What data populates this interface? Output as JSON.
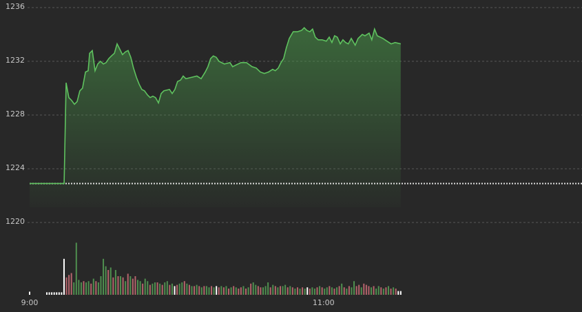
{
  "chart_data": [
    {
      "type": "area",
      "xlim": [
        0,
        225.5
      ],
      "xticks": [
        {
          "value": 0,
          "label": "9:00"
        },
        {
          "value": 120,
          "label": "11:00"
        }
      ],
      "ylim": [
        1220,
        1236
      ],
      "yticks": [
        1220,
        1224,
        1228,
        1232,
        1236
      ],
      "grid": true,
      "reference_line": 1222.9,
      "color": "#5fc25f",
      "x": [
        0,
        14.1,
        14.9,
        16.0,
        17.1,
        18.3,
        19.4,
        20.5,
        21.6,
        22.8,
        23.9,
        24.5,
        25.6,
        26.7,
        27.8,
        28.9,
        30.1,
        31.2,
        32.3,
        33.4,
        34.6,
        35.7,
        36.8,
        37.9,
        39.1,
        40.2,
        41.3,
        42.4,
        43.6,
        44.7,
        45.8,
        46.9,
        48.1,
        49.2,
        50.3,
        51.4,
        52.6,
        53.7,
        54.8,
        57.1,
        58.2,
        59.3,
        60.4,
        61.6,
        62.7,
        63.8,
        66.0,
        68.3,
        70.0,
        71.7,
        72.8,
        73.9,
        75.0,
        76.2,
        77.3,
        79.5,
        81.8,
        82.9,
        84.0,
        86.3,
        88.5,
        90.8,
        92.5,
        94.2,
        95.8,
        97.5,
        99.2,
        100.3,
        101.5,
        102.6,
        103.7,
        104.8,
        106.0,
        107.6,
        109.3,
        111.0,
        112.1,
        113.2,
        114.4,
        115.5,
        116.6,
        117.8,
        119.4,
        121.1,
        122.3,
        123.4,
        124.5,
        125.6,
        126.8,
        127.9,
        129.0,
        130.1,
        131.3,
        132.9,
        134.1,
        135.8,
        136.9,
        138.6,
        139.7,
        140.8,
        141.9,
        144.2,
        145.9,
        147.6,
        149.2,
        151.5
      ],
      "values": [
        1222.9,
        1222.9,
        1230.4,
        1229.3,
        1229.1,
        1228.8,
        1229.0,
        1229.8,
        1230.0,
        1231.2,
        1231.3,
        1232.6,
        1232.8,
        1231.3,
        1231.8,
        1232.0,
        1231.8,
        1231.9,
        1232.2,
        1232.4,
        1232.6,
        1233.3,
        1232.9,
        1232.5,
        1232.7,
        1232.8,
        1232.3,
        1231.5,
        1230.8,
        1230.3,
        1229.9,
        1229.8,
        1229.5,
        1229.3,
        1229.4,
        1229.3,
        1228.9,
        1229.6,
        1229.8,
        1229.9,
        1229.6,
        1229.9,
        1230.5,
        1230.6,
        1230.9,
        1230.7,
        1230.8,
        1230.9,
        1230.7,
        1231.2,
        1231.6,
        1232.2,
        1232.4,
        1232.3,
        1232.0,
        1231.8,
        1231.9,
        1231.6,
        1231.7,
        1231.9,
        1231.9,
        1231.6,
        1231.5,
        1231.2,
        1231.1,
        1231.2,
        1231.4,
        1231.3,
        1231.5,
        1231.9,
        1232.2,
        1233.0,
        1233.7,
        1234.2,
        1234.2,
        1234.3,
        1234.5,
        1234.3,
        1234.2,
        1234.4,
        1233.8,
        1233.6,
        1233.6,
        1233.5,
        1233.8,
        1233.4,
        1233.9,
        1233.8,
        1233.3,
        1233.6,
        1233.4,
        1233.3,
        1233.7,
        1233.2,
        1233.7,
        1234.0,
        1233.9,
        1234.1,
        1233.6,
        1234.4,
        1233.9,
        1233.7,
        1233.5,
        1233.3,
        1233.4,
        1233.3
      ]
    },
    {
      "type": "bar",
      "ylim": [
        0,
        100
      ],
      "categories": [
        null,
        null,
        null,
        null,
        null,
        null,
        null,
        null,
        null,
        null,
        null,
        null,
        null,
        null,
        null,
        null,
        null,
        null,
        null,
        null,
        null,
        null,
        null,
        null,
        null,
        null,
        null,
        null,
        null,
        null,
        null,
        null,
        null,
        null,
        null,
        null,
        null,
        null,
        null,
        null,
        null,
        null,
        null,
        null,
        null,
        null,
        null,
        null,
        null,
        null,
        null,
        null,
        null,
        null,
        null,
        null,
        null,
        null,
        null,
        null,
        null,
        null,
        null,
        null,
        null,
        null,
        null,
        null,
        null,
        null,
        null,
        null,
        null,
        null,
        null,
        null,
        null,
        null,
        null,
        null,
        null,
        null,
        null,
        null,
        null,
        null,
        null,
        null,
        null,
        null,
        null,
        null,
        null,
        null,
        null,
        null,
        null,
        null,
        null,
        null,
        null,
        null,
        null,
        null,
        null,
        null,
        null,
        null,
        null,
        null,
        null,
        null,
        null,
        null,
        null,
        null,
        null,
        null,
        null,
        null,
        null,
        null,
        null,
        null,
        null,
        null,
        null,
        null,
        null,
        null,
        null,
        null,
        null,
        null,
        null,
        null,
        null,
        null,
        null,
        null,
        null,
        null,
        null,
        null,
        null,
        null,
        null,
        null,
        null,
        null,
        null,
        null
      ],
      "values": [
        5,
        0,
        0,
        0,
        0,
        0,
        0,
        4,
        4,
        4,
        4,
        4,
        4,
        4,
        58,
        28,
        32,
        35,
        20,
        84,
        24,
        20,
        22,
        20,
        22,
        18,
        26,
        22,
        20,
        30,
        58,
        46,
        40,
        44,
        28,
        40,
        30,
        30,
        28,
        22,
        34,
        30,
        26,
        30,
        24,
        22,
        18,
        26,
        22,
        16,
        18,
        20,
        20,
        18,
        16,
        20,
        22,
        16,
        18,
        14,
        16,
        18,
        20,
        22,
        18,
        16,
        14,
        14,
        16,
        14,
        12,
        14,
        14,
        12,
        14,
        12,
        14,
        12,
        14,
        12,
        14,
        10,
        12,
        14,
        12,
        10,
        12,
        14,
        10,
        12,
        18,
        20,
        16,
        14,
        12,
        12,
        14,
        20,
        12,
        16,
        14,
        12,
        14,
        14,
        16,
        12,
        14,
        12,
        10,
        12,
        10,
        12,
        10,
        12,
        10,
        12,
        10,
        12,
        14,
        12,
        10,
        12,
        14,
        12,
        10,
        12,
        14,
        18,
        12,
        10,
        14,
        12,
        22,
        14,
        16,
        12,
        18,
        16,
        14,
        12,
        14,
        10,
        14,
        12,
        10,
        12,
        14,
        10,
        12,
        10,
        6,
        6
      ],
      "colors": [
        "#ffffff",
        "#ffffff",
        "#ffffff",
        "#ffffff",
        "#ffffff",
        "#ffffff",
        "#ffffff",
        "#ffffff",
        "#ffffff",
        "#ffffff",
        "#ffffff",
        "#ffffff",
        "#ffffff",
        "#ffffff",
        "#ffffff",
        "#b5646c",
        "#b5646c",
        "#b5646c",
        "#4f8f4f",
        "#4f8f4f",
        "#4f8f4f",
        "#4f8f4f",
        "#b5646c",
        "#4f8f4f",
        "#4f8f4f",
        "#b5646c",
        "#4f8f4f",
        "#b5646c",
        "#4f8f4f",
        "#4f8f4f",
        "#4f8f4f",
        "#4f8f4f",
        "#b5646c",
        "#4f8f4f",
        "#b5646c",
        "#4f8f4f",
        "#b5646c",
        "#4f8f4f",
        "#b5646c",
        "#4f8f4f",
        "#b5646c",
        "#4f8f4f",
        "#b5646c",
        "#b5646c",
        "#4f8f4f",
        "#4f8f4f",
        "#b5646c",
        "#4f8f4f",
        "#4f8f4f",
        "#b5646c",
        "#4f8f4f",
        "#4f8f4f",
        "#b5646c",
        "#4f8f4f",
        "#b5646c",
        "#4f8f4f",
        "#4f8f4f",
        "#b5646c",
        "#4f8f4f",
        "#ffffff",
        "#b5646c",
        "#4f8f4f",
        "#4f8f4f",
        "#b5646c",
        "#4f8f4f",
        "#b5646c",
        "#4f8f4f",
        "#b5646c",
        "#4f8f4f",
        "#b5646c",
        "#4f8f4f",
        "#b5646c",
        "#4f8f4f",
        "#4f8f4f",
        "#b5646c",
        "#4f8f4f",
        "#ffffff",
        "#b5646c",
        "#4f8f4f",
        "#b5646c",
        "#4f8f4f",
        "#b5646c",
        "#4f8f4f",
        "#b5646c",
        "#4f8f4f",
        "#b5646c",
        "#b5646c",
        "#4f8f4f",
        "#b5646c",
        "#4f8f4f",
        "#b5646c",
        "#4f8f4f",
        "#4f8f4f",
        "#b5646c",
        "#b5646c",
        "#4f8f4f",
        "#4f8f4f",
        "#4f8f4f",
        "#b5646c",
        "#4f8f4f",
        "#b5646c",
        "#4f8f4f",
        "#b5646c",
        "#4f8f4f",
        "#4f8f4f",
        "#b5646c",
        "#4f8f4f",
        "#b5646c",
        "#4f8f4f",
        "#b5646c",
        "#4f8f4f",
        "#b5646c",
        "#4f8f4f",
        "#ffffff",
        "#b5646c",
        "#4f8f4f",
        "#4f8f4f",
        "#b5646c",
        "#4f8f4f",
        "#b5646c",
        "#4f8f4f",
        "#4f8f4f",
        "#b5646c",
        "#4f8f4f",
        "#b5646c",
        "#4f8f4f",
        "#b5646c",
        "#4f8f4f",
        "#b5646c",
        "#4f8f4f",
        "#b5646c",
        "#4f8f4f",
        "#4f8f4f",
        "#b5646c",
        "#b5646c",
        "#4f8f4f",
        "#b5646c",
        "#b5646c",
        "#b5646c",
        "#4f8f4f",
        "#b5646c",
        "#4f8f4f",
        "#4f8f4f",
        "#b5646c",
        "#4f8f4f",
        "#b5646c",
        "#4f8f4f",
        "#b5646c",
        "#4f8f4f",
        "#b5646c",
        "#ffffff",
        "#ffffff"
      ]
    }
  ]
}
